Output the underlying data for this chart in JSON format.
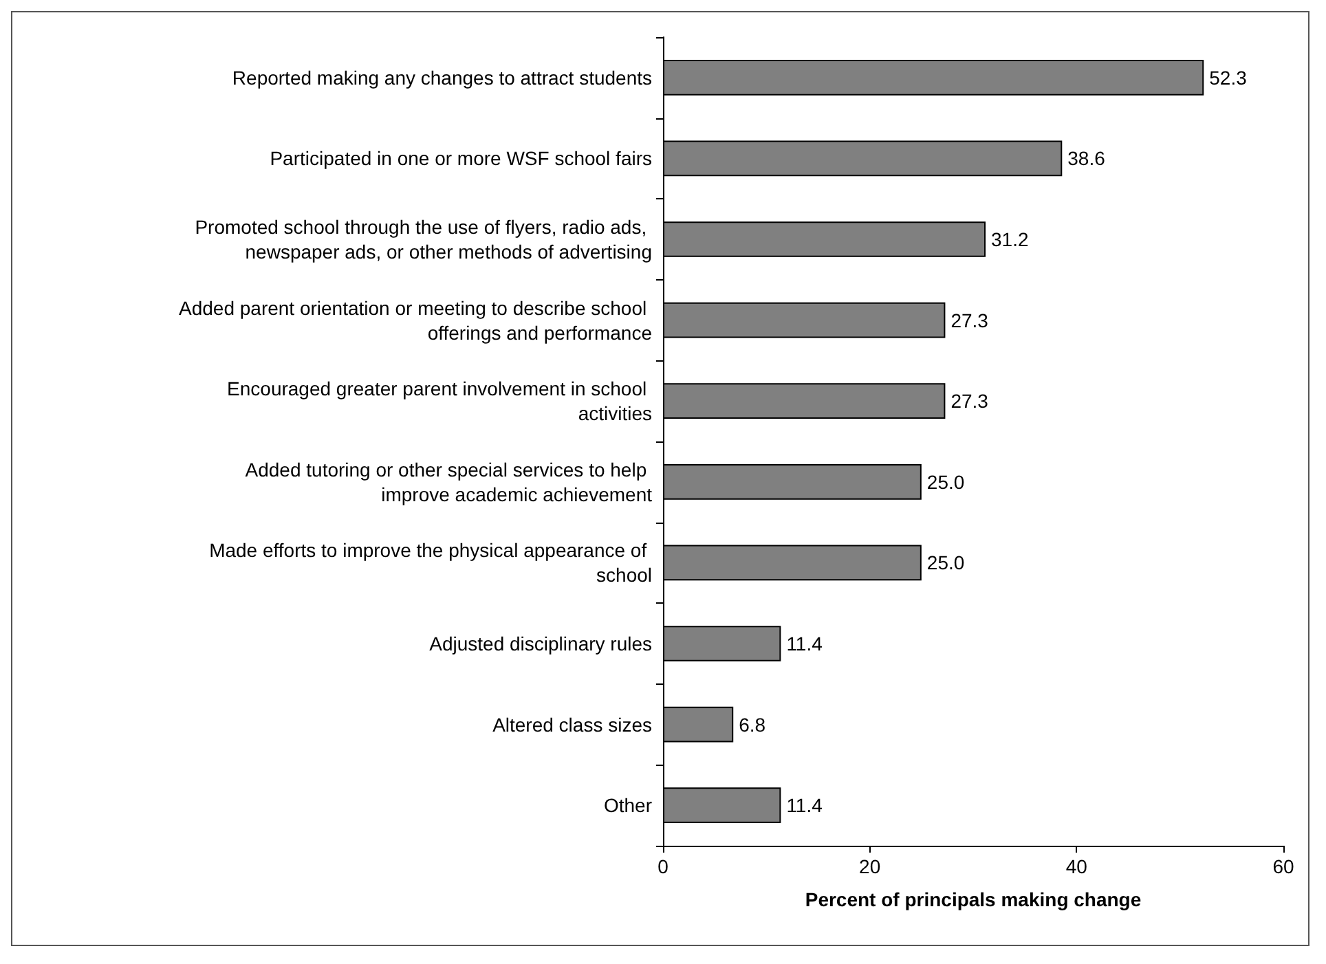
{
  "chart_data": {
    "type": "bar",
    "orientation": "horizontal",
    "xlabel": "Percent of principals making change",
    "categories": [
      "Reported making any changes to attract students",
      "Participated in one or more WSF school fairs",
      "Promoted school through the use of flyers, radio ads, newspaper ads, or other methods of advertising",
      "Added parent orientation or meeting to describe school offerings and performance",
      "Encouraged greater parent involvement in school activities",
      "Added tutoring or other special services to help improve academic achievement",
      "Made efforts to improve the physical appearance of school",
      "Adjusted disciplinary rules",
      "Altered class sizes",
      "Other"
    ],
    "values": [
      52.3,
      38.6,
      31.2,
      27.3,
      27.3,
      25.0,
      25.0,
      11.4,
      6.8,
      11.4
    ],
    "value_labels": [
      "52.3",
      "38.6",
      "31.2",
      "27.3",
      "27.3",
      "25.0",
      "25.0",
      "11.4",
      "6.8",
      "11.4"
    ],
    "color": "#808080",
    "xlim": [
      0,
      60
    ],
    "xticks": [
      0,
      20,
      40,
      60
    ],
    "grid": false
  }
}
